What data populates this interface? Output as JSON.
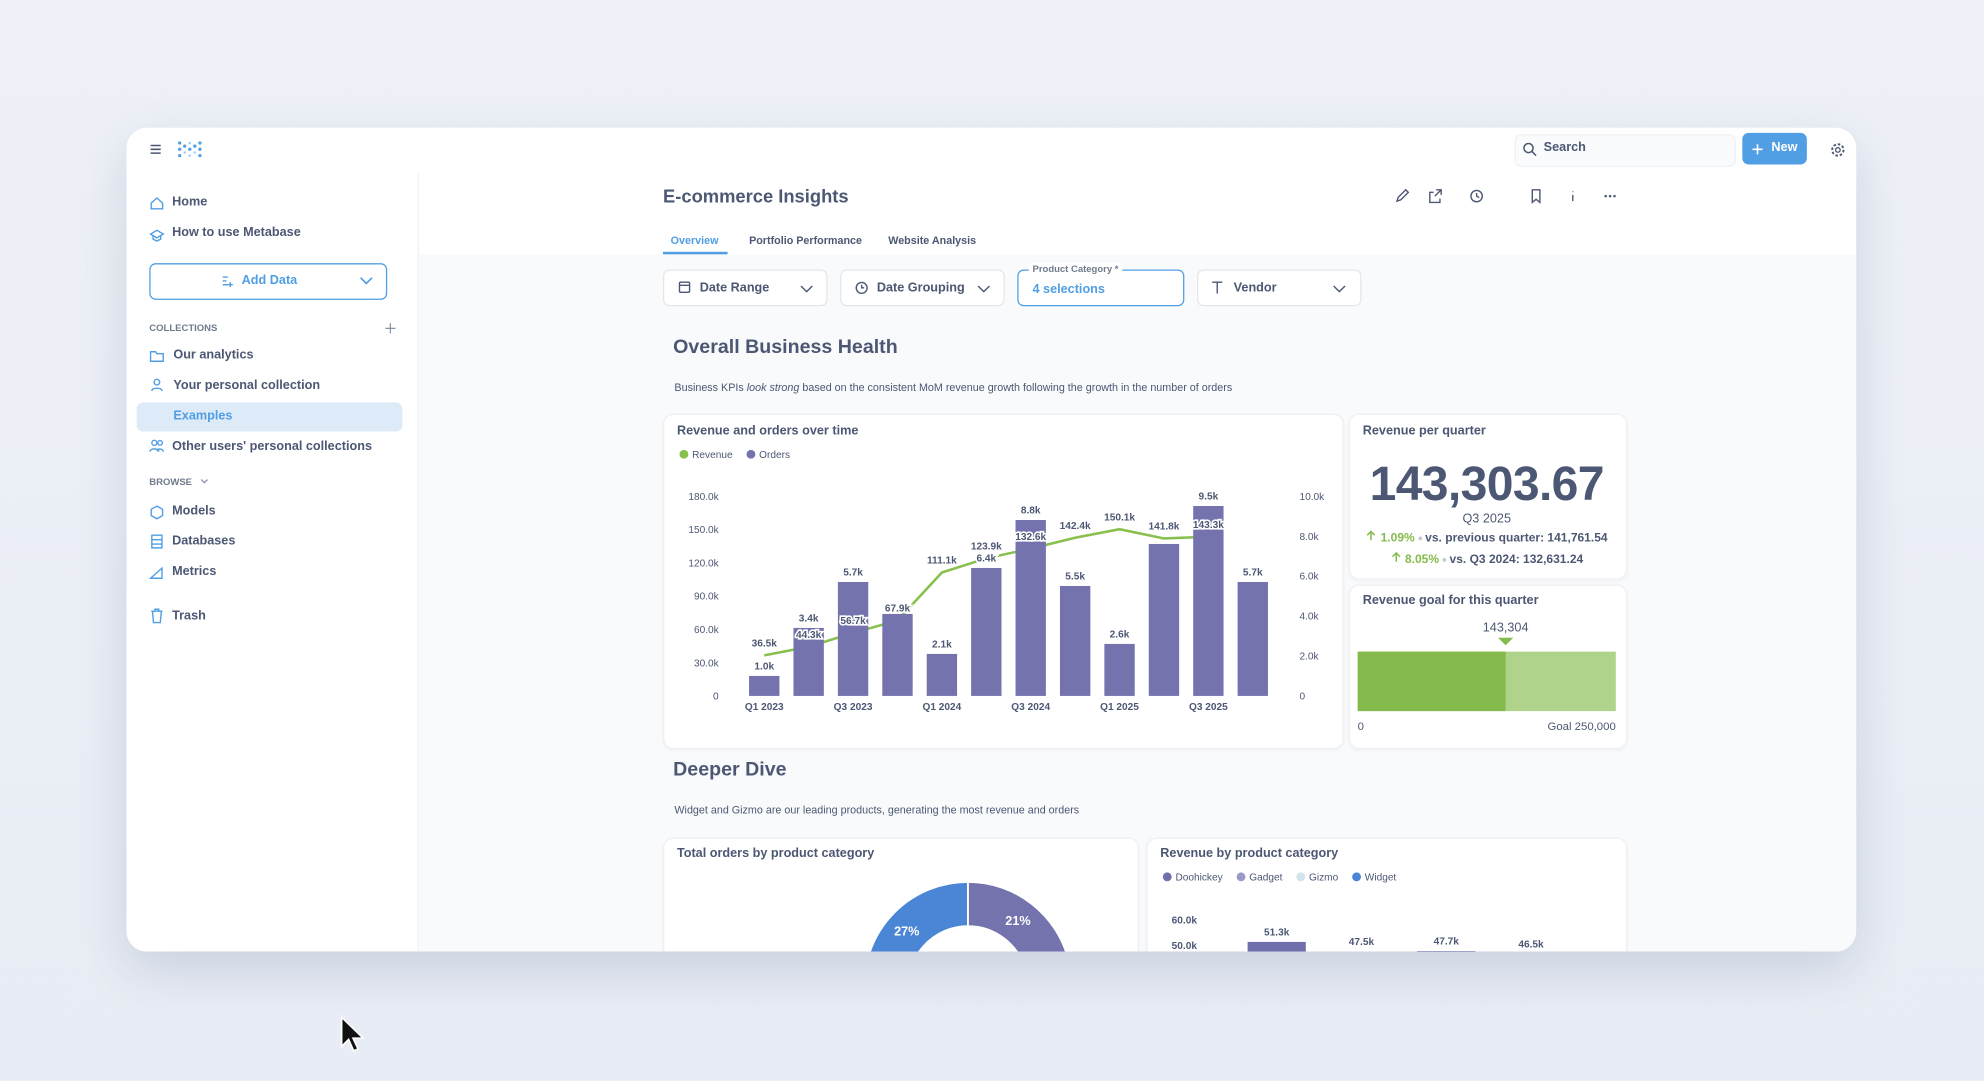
{
  "topbar": {
    "search": "Search",
    "new": "New"
  },
  "nav": {
    "links": [
      "Home",
      "How to use Metabase"
    ],
    "add_data": "Add Data",
    "collections_label": "COLLECTIONS",
    "collections": [
      "Our analytics",
      "Your personal collection",
      "Examples",
      "Other users' personal collections"
    ],
    "browse_label": "BROWSE",
    "browse": [
      "Models",
      "Databases",
      "Metrics"
    ],
    "trash": "Trash"
  },
  "dashboard": {
    "title": "E-commerce Insights",
    "tabs": [
      "Overview",
      "Portfolio Performance",
      "Website Analysis"
    ],
    "filters": [
      {
        "label": "Date Range"
      },
      {
        "label": "Date Grouping"
      },
      {
        "label": "Product Category *",
        "value": "4 selections"
      },
      {
        "label": "Vendor"
      }
    ],
    "sections": [
      {
        "heading": "Overall Business Health",
        "description": [
          "Business KPIs ",
          "look strong",
          " based on the consistent MoM revenue growth following the growth in the number of orders"
        ]
      },
      {
        "heading": "Deeper Dive",
        "description": [
          "Widget and Gizmo are our leading products, generating the most revenue and orders"
        ]
      }
    ],
    "kpi": {
      "title": "Revenue per quarter",
      "value": "143,303.67",
      "period": "Q3 2025",
      "comparisons": [
        {
          "change": "1.09%",
          "text": "vs. previous quarter: 141,761.54"
        },
        {
          "change": "8.05%",
          "text": "vs. Q3 2024: 132,631.24"
        }
      ]
    }
  },
  "chart_data": [
    {
      "type": "combo",
      "title": "Revenue and orders over time",
      "categories": [
        "Q1 2023",
        null,
        "Q3 2023",
        null,
        "Q1 2024",
        null,
        "Q3 2024",
        null,
        "Q1 2025",
        null,
        "Q3 2025",
        null
      ],
      "series": [
        {
          "name": "Revenue",
          "type": "line",
          "color": "#88bf4d",
          "values": [
            36500,
            44300,
            56700,
            67900,
            111100,
            123900,
            132600,
            142400,
            150100,
            141800,
            143300,
            null
          ],
          "value_labels": [
            "36.5k",
            "44.3k",
            "56.7k",
            "67.9k",
            "111.1k",
            "123.9k",
            "132.6k",
            "142.4k",
            "150.1k",
            "141.8k",
            "143.3k",
            null
          ]
        },
        {
          "name": "Orders",
          "type": "bar",
          "axis": "y2",
          "color": "#7473ae",
          "values": [
            1000,
            3400,
            5700,
            4100,
            2100,
            6400,
            8800,
            5500,
            2600,
            7600,
            9500,
            5700
          ],
          "value_labels": [
            "1.0k",
            "3.4k",
            "5.7k",
            null,
            "2.1k",
            "6.4k",
            "8.8k",
            "5.5k",
            "2.6k",
            null,
            "9.5k",
            "5.7k"
          ]
        }
      ],
      "ylim": [
        0,
        180000
      ],
      "yticks": [
        0,
        {
          "value": 30000,
          "label": "30.0k"
        },
        {
          "value": 60000,
          "label": "60.0k"
        },
        {
          "value": 90000,
          "label": "90.0k"
        },
        {
          "value": 120000,
          "label": "120.0k"
        },
        {
          "value": 150000,
          "label": "150.0k"
        },
        {
          "value": 180000,
          "label": "180.0k"
        }
      ],
      "y2lim": [
        0,
        10000
      ],
      "y2ticks": [
        0,
        {
          "value": 2000,
          "label": "2.0k"
        },
        {
          "value": 4000,
          "label": "4.0k"
        },
        {
          "value": 6000,
          "label": "6.0k"
        },
        {
          "value": 8000,
          "label": "8.0k"
        },
        {
          "value": 10000,
          "label": "10.0k"
        }
      ],
      "grid": false
    },
    {
      "type": "progress",
      "title": "Revenue goal for this quarter",
      "values": [
        143304
      ],
      "value_labels": [
        "143,304"
      ],
      "color": "#84bb4c",
      "xlim": [
        0,
        250000
      ],
      "xticks": [
        0,
        {
          "value": 250000,
          "label": "Goal 250,000"
        }
      ]
    },
    {
      "type": "pie",
      "title": "Total orders by product category",
      "values": [
        27,
        21
      ],
      "value_labels": [
        "27%",
        "21%"
      ],
      "colors": [
        "#4a85d6",
        "#7473ae"
      ]
    },
    {
      "type": "bar",
      "title": "Revenue by product category",
      "categories": [
        null,
        null,
        null,
        null
      ],
      "series": [
        {
          "name": "Doohickey",
          "color": "#6f70ab",
          "values": [
            51300,
            47500,
            47700,
            46500
          ],
          "value_labels": [
            "51.3k",
            "47.5k",
            "47.7k",
            "46.5k"
          ]
        },
        {
          "name": "Gadget",
          "color": "#9a9bc9",
          "values": [
            null,
            null,
            null,
            null
          ]
        },
        {
          "name": "Gizmo",
          "color": "#d2e3e9",
          "values": [
            null,
            null,
            null,
            null
          ]
        },
        {
          "name": "Widget",
          "color": "#4a85d6",
          "values": [
            null,
            null,
            null,
            null
          ]
        }
      ],
      "ylim": [
        0,
        60000
      ],
      "yticks": [
        {
          "value": 50000,
          "label": "50.0k"
        },
        {
          "value": 60000,
          "label": "60.0k"
        }
      ]
    }
  ]
}
